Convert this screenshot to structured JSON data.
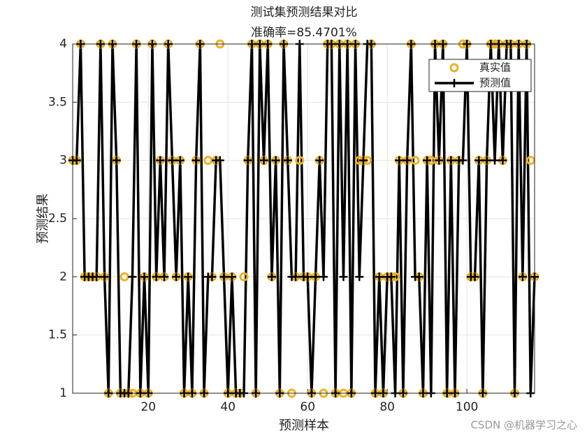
{
  "chart_data": {
    "type": "line",
    "title": "测试集预测结果对比",
    "subtitle": "准确率=85.4701%",
    "x_label": "预测样本",
    "y_label": "预测结果",
    "watermark": "CSDN @机器学习之心",
    "x": [
      1,
      2,
      3,
      4,
      5,
      6,
      7,
      8,
      9,
      10,
      11,
      12,
      13,
      14,
      15,
      16,
      17,
      18,
      19,
      20,
      21,
      22,
      23,
      24,
      25,
      26,
      27,
      28,
      29,
      30,
      31,
      32,
      33,
      34,
      35,
      36,
      37,
      38,
      39,
      40,
      41,
      42,
      43,
      44,
      45,
      46,
      47,
      48,
      49,
      50,
      51,
      52,
      53,
      54,
      55,
      56,
      57,
      58,
      59,
      60,
      61,
      62,
      63,
      64,
      65,
      66,
      67,
      68,
      69,
      70,
      71,
      72,
      73,
      74,
      75,
      76,
      77,
      78,
      79,
      80,
      81,
      82,
      83,
      84,
      85,
      86,
      87,
      88,
      89,
      90,
      91,
      92,
      93,
      94,
      95,
      96,
      97,
      98,
      99,
      100,
      101,
      102,
      103,
      104,
      105,
      106,
      107,
      108,
      109,
      110,
      111,
      112,
      113,
      114,
      115,
      116,
      117
    ],
    "series": [
      {
        "name": "真实值",
        "color": "#edb120",
        "marker": "circle",
        "values": [
          3,
          3,
          4,
          2,
          2,
          2,
          2,
          4,
          2,
          1,
          4,
          3,
          1,
          2,
          1,
          1,
          4,
          1,
          2,
          1,
          4,
          2,
          3,
          2,
          4,
          3,
          2,
          3,
          1,
          2,
          1,
          3,
          4,
          1,
          3,
          2,
          3,
          4,
          2,
          1,
          2,
          1,
          1,
          2,
          3,
          4,
          1,
          4,
          3,
          4,
          2,
          3,
          1,
          4,
          3,
          1,
          2,
          3,
          2,
          2,
          1,
          2,
          3,
          1,
          4,
          4,
          1,
          4,
          1,
          4,
          1,
          4,
          3,
          3,
          3,
          4,
          1,
          2,
          1,
          2,
          2,
          2,
          3,
          1,
          3,
          4,
          3,
          2,
          1,
          3,
          3,
          4,
          3,
          4,
          1,
          3,
          1,
          3,
          4,
          4,
          2,
          2,
          3,
          1,
          3,
          4,
          4,
          4,
          3,
          4,
          4,
          1,
          4,
          2,
          4,
          3,
          2
        ]
      },
      {
        "name": "预测值",
        "color": "#000000",
        "marker": "plus",
        "values": [
          3,
          3,
          4,
          2,
          2,
          2,
          2,
          4,
          2,
          1,
          4,
          3,
          1,
          1,
          1,
          2,
          4,
          1,
          2,
          1,
          4,
          2,
          3,
          2,
          4,
          3,
          2,
          3,
          1,
          2,
          1,
          3,
          4,
          1,
          2,
          2,
          3,
          3,
          2,
          1,
          2,
          1,
          1,
          1,
          3,
          4,
          1,
          4,
          3,
          4,
          2,
          3,
          1,
          4,
          3,
          2,
          2,
          4,
          2,
          2,
          1,
          2,
          3,
          2,
          4,
          4,
          1,
          4,
          2,
          4,
          1,
          4,
          2,
          3,
          4,
          4,
          1,
          2,
          1,
          2,
          2,
          1,
          3,
          1,
          3,
          4,
          2,
          2,
          1,
          3,
          1,
          4,
          3,
          4,
          1,
          3,
          1,
          3,
          3,
          4,
          2,
          2,
          3,
          1,
          3,
          4,
          3,
          4,
          3,
          4,
          4,
          1,
          4,
          2,
          4,
          1,
          2
        ]
      }
    ],
    "xlim": [
      1,
      117
    ],
    "ylim": [
      1,
      4
    ],
    "xticks": [
      20,
      40,
      60,
      80,
      100
    ],
    "yticks": [
      1,
      1.5,
      2,
      2.5,
      3,
      3.5,
      4
    ],
    "grid": true,
    "legend": "northeast"
  }
}
